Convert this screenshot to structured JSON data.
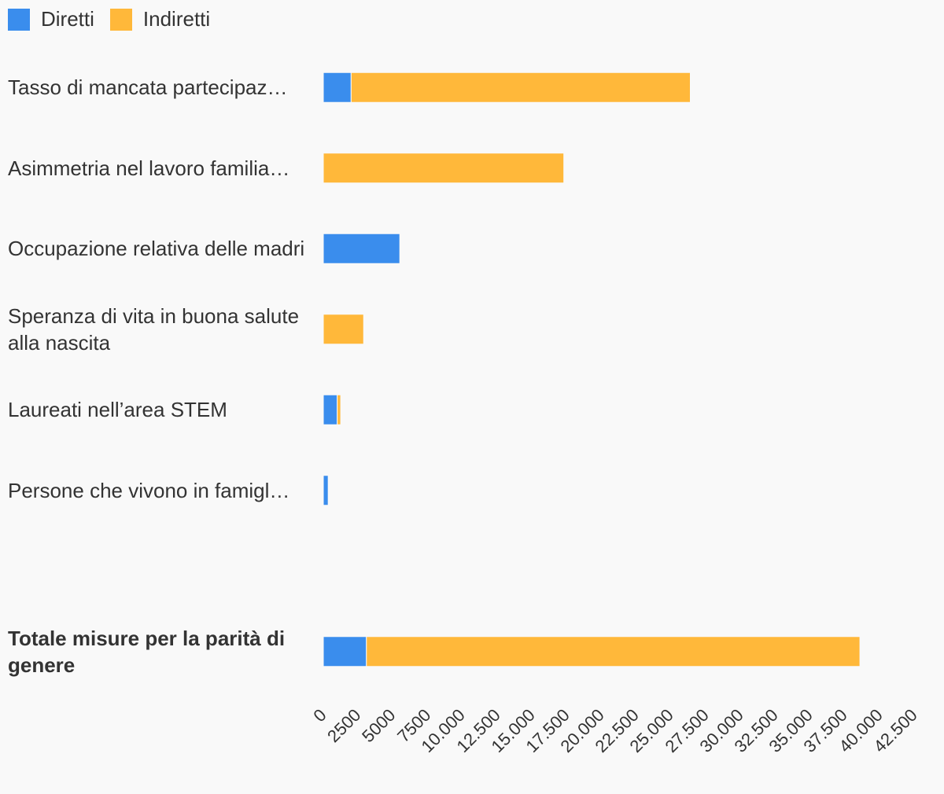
{
  "chart_data": {
    "type": "bar",
    "orientation": "horizontal",
    "stacked": true,
    "legend_position": "top-left",
    "grid": false,
    "categories": [
      "Tasso di mancata partecipazione al lavoro",
      "Asimmetria nel lavoro familiare",
      "Occupazione relativa delle madri",
      "Speranza di vita in buona salute alla nascita",
      "Laureati nell’area STEM",
      "Persone che vivono in famiglie",
      "",
      "Totale misure per la parità di genere"
    ],
    "display_labels": [
      "Tasso di mancata partecipaz…",
      "Asimmetria nel lavoro familia…",
      "Occupazione relativa delle madri",
      "Speranza di vita in buona salute alla nascita",
      "Laureati nell’area STEM",
      "Persone che vivono in famigl…",
      "",
      "Totale misure per la parità di genere"
    ],
    "bold_categories": [
      false,
      false,
      false,
      false,
      false,
      false,
      false,
      true
    ],
    "series": [
      {
        "name": "Diretti",
        "color": "#3a8ded",
        "values": [
          2000,
          0,
          5500,
          0,
          1000,
          350,
          null,
          3100
        ]
      },
      {
        "name": "Indiretti",
        "color": "#ffb83a",
        "values": [
          24400,
          17300,
          0,
          2900,
          250,
          0,
          null,
          35500
        ]
      }
    ],
    "x_ticks": [
      "0",
      "2500",
      "5000",
      "7500",
      "10.000",
      "12.500",
      "15.000",
      "17.500",
      "20.000",
      "22.500",
      "25.000",
      "27.500",
      "30.000",
      "32.500",
      "35.000",
      "37.500",
      "40.000",
      "42.500"
    ],
    "xlim": [
      0,
      42500
    ],
    "xlabel": "",
    "ylabel": "",
    "title": ""
  }
}
